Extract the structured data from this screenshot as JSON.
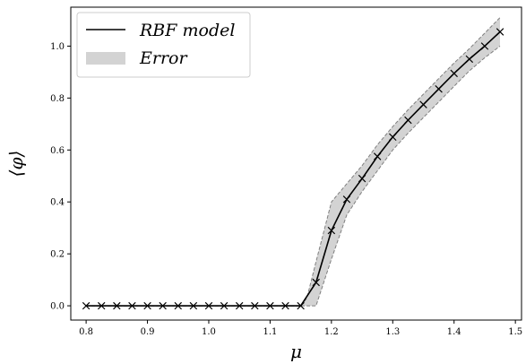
{
  "chart_data": {
    "type": "line",
    "xlabel": "μ",
    "ylabel": "⟨φ⟩",
    "xlim": [
      0.775,
      1.51
    ],
    "ylim": [
      -0.055,
      1.15
    ],
    "xticks": [
      "0.8",
      "0.9",
      "1.0",
      "1.1",
      "1.2",
      "1.3",
      "1.4",
      "1.5"
    ],
    "yticks": [
      "0.0",
      "0.2",
      "0.4",
      "0.6",
      "0.8",
      "1.0"
    ],
    "legend_position": "top-left",
    "grid": false,
    "series": [
      {
        "name": "RBF model",
        "type": "line",
        "marker": "x",
        "color": "#000000",
        "x": [
          0.8,
          0.825,
          0.85,
          0.875,
          0.9,
          0.925,
          0.95,
          0.975,
          1.0,
          1.025,
          1.05,
          1.075,
          1.1,
          1.125,
          1.15,
          1.175,
          1.2,
          1.225,
          1.25,
          1.275,
          1.3,
          1.325,
          1.35,
          1.375,
          1.4,
          1.425,
          1.45,
          1.475
        ],
        "y": [
          0.0,
          0.0,
          0.0,
          0.0,
          0.0,
          0.0,
          0.0,
          0.0,
          0.0,
          0.0,
          0.0,
          0.0,
          0.0,
          0.0,
          0.0,
          0.09,
          0.29,
          0.41,
          0.49,
          0.575,
          0.65,
          0.715,
          0.775,
          0.835,
          0.895,
          0.95,
          1.0,
          1.055
        ]
      },
      {
        "name": "Error",
        "type": "band",
        "color": "#d3d3d3",
        "edge_color": "#7f7f7f",
        "x": [
          0.8,
          1.15,
          1.16,
          1.175,
          1.2,
          1.225,
          1.25,
          1.275,
          1.3,
          1.325,
          1.35,
          1.375,
          1.4,
          1.425,
          1.45,
          1.475
        ],
        "upper": [
          0.0,
          0.0,
          0.03,
          0.17,
          0.4,
          0.47,
          0.54,
          0.62,
          0.69,
          0.755,
          0.815,
          0.875,
          0.935,
          0.99,
          1.05,
          1.11
        ],
        "lower": [
          0.0,
          0.0,
          0.0,
          0.0,
          0.18,
          0.35,
          0.44,
          0.52,
          0.6,
          0.665,
          0.725,
          0.785,
          0.845,
          0.905,
          0.955,
          1.0
        ]
      }
    ]
  }
}
